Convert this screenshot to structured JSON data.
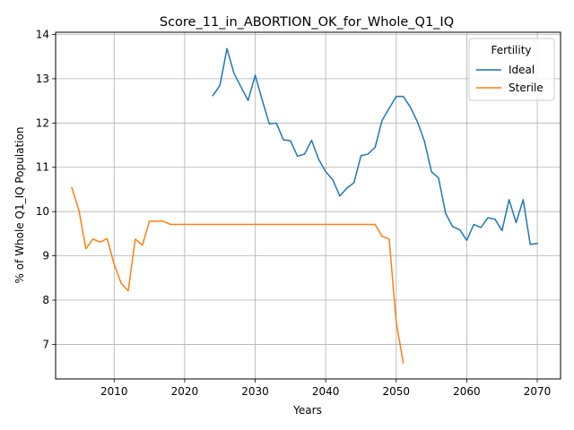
{
  "chart_data": {
    "type": "line",
    "title": "Score_11_in_ABORTION_OK_for_Whole_Q1_IQ",
    "xlabel": "Years",
    "ylabel": "% of Whole Q1_IQ Population",
    "xlim": [
      2001.7,
      2073.3
    ],
    "ylim": [
      6.22,
      14.05
    ],
    "xticks": [
      2010,
      2020,
      2030,
      2040,
      2050,
      2060,
      2070
    ],
    "yticks": [
      7,
      8,
      9,
      10,
      11,
      12,
      13,
      14
    ],
    "grid": true,
    "legend": {
      "title": "Fertility",
      "placement": "top-right"
    },
    "series": [
      {
        "name": "Ideal",
        "color": "#1f77b4",
        "x": [
          2024,
          2025,
          2026,
          2027,
          2028,
          2029,
          2030,
          2031,
          2032,
          2033,
          2034,
          2035,
          2036,
          2037,
          2038,
          2039,
          2040,
          2041,
          2042,
          2043,
          2044,
          2045,
          2046,
          2047,
          2048,
          2049,
          2050,
          2051,
          2052,
          2053,
          2054,
          2055,
          2056,
          2057,
          2058,
          2059,
          2060,
          2061,
          2062,
          2063,
          2064,
          2065,
          2066,
          2067,
          2068,
          2069,
          2070
        ],
        "y": [
          12.62,
          12.85,
          13.68,
          13.12,
          12.81,
          12.51,
          13.08,
          12.52,
          11.98,
          12.0,
          11.62,
          11.6,
          11.25,
          11.3,
          11.61,
          11.18,
          10.9,
          10.72,
          10.35,
          10.53,
          10.65,
          11.26,
          11.3,
          11.45,
          12.06,
          12.33,
          12.6,
          12.6,
          12.36,
          12.03,
          11.59,
          10.9,
          10.76,
          9.96,
          9.66,
          9.59,
          9.35,
          9.71,
          9.64,
          9.86,
          9.83,
          9.57,
          10.27,
          9.75,
          10.27,
          9.26,
          9.28
        ]
      },
      {
        "name": "Sterile",
        "color": "#ff7f0e",
        "x": [
          2004,
          2005,
          2006,
          2007,
          2008,
          2009,
          2010,
          2011,
          2012,
          2013,
          2014,
          2015,
          2016,
          2017,
          2018,
          2019,
          2020,
          2021,
          2022,
          2023,
          2024,
          2025,
          2026,
          2027,
          2028,
          2029,
          2030,
          2031,
          2032,
          2033,
          2034,
          2035,
          2036,
          2037,
          2038,
          2039,
          2040,
          2041,
          2042,
          2043,
          2044,
          2045,
          2046,
          2047,
          2048,
          2049,
          2050,
          2051
        ],
        "y": [
          10.54,
          10.03,
          9.16,
          9.38,
          9.31,
          9.39,
          8.81,
          8.38,
          8.21,
          9.38,
          9.24,
          9.78,
          9.78,
          9.78,
          9.71,
          9.71,
          9.71,
          9.71,
          9.71,
          9.71,
          9.71,
          9.71,
          9.71,
          9.71,
          9.71,
          9.71,
          9.71,
          9.71,
          9.71,
          9.71,
          9.71,
          9.71,
          9.71,
          9.71,
          9.71,
          9.71,
          9.71,
          9.71,
          9.71,
          9.71,
          9.71,
          9.71,
          9.71,
          9.71,
          9.44,
          9.38,
          7.5,
          6.58
        ]
      }
    ]
  }
}
